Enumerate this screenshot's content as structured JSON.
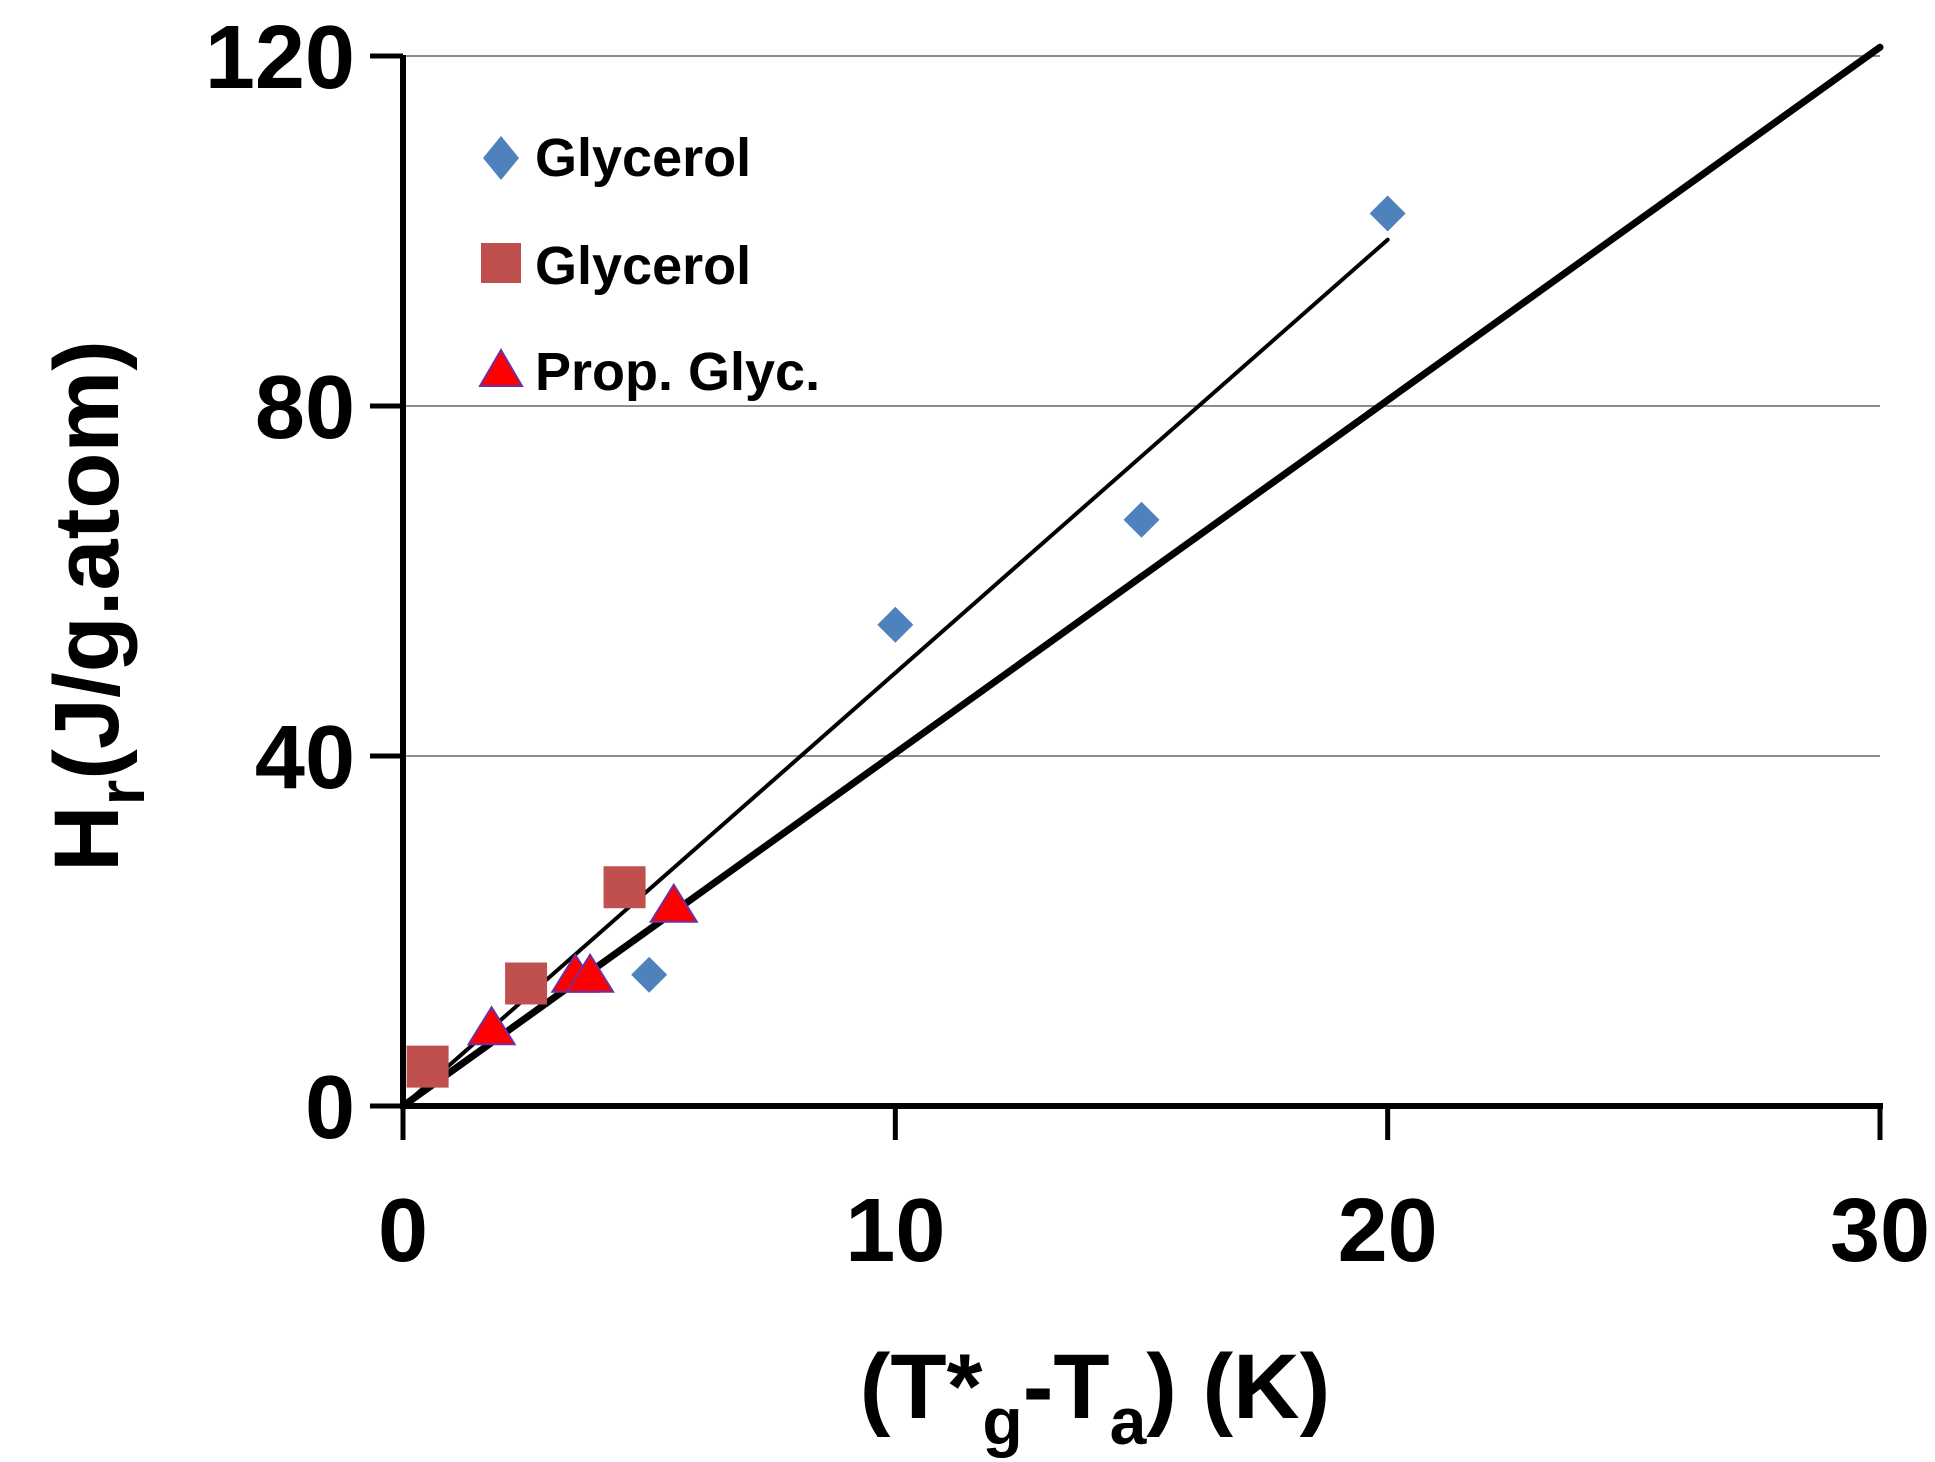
{
  "chart_data": {
    "type": "scatter",
    "title": "",
    "xlabel": {
      "main1": "(T*",
      "sub1": "g",
      "main2": "-T",
      "sub2": "a",
      "main3": ") (K)"
    },
    "ylabel": {
      "main1": "H",
      "sub1": "r",
      "main2": "(J/g.atom)"
    },
    "xlim": [
      0,
      30
    ],
    "ylim": [
      0,
      120
    ],
    "xticks": [
      0,
      10,
      20,
      30
    ],
    "xtick_labels": [
      "0",
      "10",
      "20",
      "30"
    ],
    "yticks": [
      0,
      40,
      80,
      120
    ],
    "ytick_labels": [
      "0",
      "40",
      "80",
      "120"
    ],
    "grid": "horizontal",
    "legend_position": "top-left",
    "series": [
      {
        "name": "Glycerol",
        "marker": "diamond",
        "color": "#4F81BD",
        "x": [
          5,
          10,
          15,
          20
        ],
        "y": [
          15,
          55,
          67,
          102
        ]
      },
      {
        "name": "Glycerol",
        "marker": "square",
        "color": "#C0504D",
        "x": [
          0.5,
          2.5,
          4.5
        ],
        "y": [
          4.5,
          14,
          25
        ]
      },
      {
        "name": "Prop. Glyc.",
        "marker": "triangle",
        "color": "#FF0000",
        "edge_color": "#7030A0",
        "x": [
          1.8,
          3.5,
          3.8,
          5.5
        ],
        "y": [
          9,
          15,
          15,
          23
        ]
      }
    ],
    "lines": [
      {
        "name": "fit-thin",
        "color": "#000000",
        "weight": "thin",
        "x": [
          0,
          20
        ],
        "y": [
          0,
          99
        ]
      },
      {
        "name": "fit-thick",
        "color": "#000000",
        "weight": "thick",
        "x": [
          0,
          30
        ],
        "y": [
          0,
          121
        ]
      }
    ]
  }
}
